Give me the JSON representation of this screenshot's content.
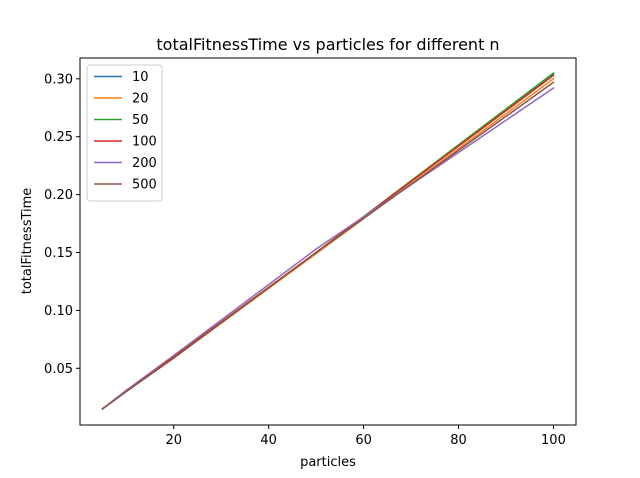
{
  "chart_data": {
    "type": "line",
    "title": "totalFitnessTime vs particles for different n",
    "xlabel": "particles",
    "ylabel": "totalFitnessTime",
    "xlim": [
      0.25,
      104.75
    ],
    "ylim": [
      0.001,
      0.318
    ],
    "xticks": [
      20,
      40,
      60,
      80,
      100
    ],
    "xtick_labels": [
      "20",
      "40",
      "60",
      "80",
      "100"
    ],
    "yticks": [
      0.05,
      0.1,
      0.15,
      0.2,
      0.25,
      0.3
    ],
    "ytick_labels": [
      "0.05",
      "0.10",
      "0.15",
      "0.20",
      "0.25",
      "0.30"
    ],
    "grid": false,
    "legend_position": "upper-left",
    "series": [
      {
        "name": "10",
        "color": "#1f77b4",
        "x": [
          5,
          10,
          20,
          50,
          100
        ],
        "y": [
          0.015,
          0.03,
          0.059,
          0.15,
          0.304
        ]
      },
      {
        "name": "20",
        "color": "#ff7f0e",
        "x": [
          5,
          10,
          20,
          50,
          100
        ],
        "y": [
          0.015,
          0.03,
          0.059,
          0.149,
          0.3
        ]
      },
      {
        "name": "50",
        "color": "#2ca02c",
        "x": [
          5,
          10,
          20,
          50,
          100
        ],
        "y": [
          0.015,
          0.03,
          0.059,
          0.15,
          0.305
        ]
      },
      {
        "name": "100",
        "color": "#d62728",
        "x": [
          5,
          10,
          20,
          50,
          100
        ],
        "y": [
          0.015,
          0.03,
          0.059,
          0.15,
          0.303
        ]
      },
      {
        "name": "200",
        "color": "#9467bd",
        "x": [
          5,
          10,
          20,
          50,
          100
        ],
        "y": [
          0.015,
          0.031,
          0.061,
          0.153,
          0.292
        ]
      },
      {
        "name": "500",
        "color": "#8c564b",
        "x": [
          5,
          10,
          20,
          50,
          100
        ],
        "y": [
          0.015,
          0.03,
          0.06,
          0.15,
          0.297
        ]
      }
    ]
  }
}
